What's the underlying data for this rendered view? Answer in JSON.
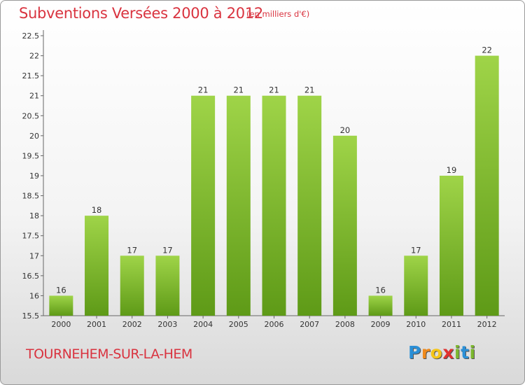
{
  "chart_data": {
    "type": "bar",
    "title": "Subventions Versées 2000 à 2012",
    "subtitle": "(en milliers d'€)",
    "categories": [
      "2000",
      "2001",
      "2002",
      "2003",
      "2004",
      "2005",
      "2006",
      "2007",
      "2008",
      "2009",
      "2010",
      "2011",
      "2012"
    ],
    "values": [
      16,
      18,
      17,
      17,
      21,
      21,
      21,
      21,
      20,
      16,
      17,
      19,
      22
    ],
    "ylim": [
      15.5,
      22.5
    ],
    "yticks": [
      "15.5",
      "16",
      "16.5",
      "17",
      "17.5",
      "18",
      "18.5",
      "19",
      "19.5",
      "20",
      "20.5",
      "21",
      "21.5",
      "22",
      "22.5"
    ],
    "xlabel": "",
    "ylabel": "",
    "grid": false,
    "bar_color": "#7cb82e",
    "bar_color_light": "#9fd448"
  },
  "commune": "TOURNEHEM-SUR-LA-HEM",
  "logo": {
    "letters": [
      "P",
      "r",
      "o",
      "x",
      "i",
      "t",
      "i"
    ],
    "colors": [
      "#2b8fd6",
      "#f08a1c",
      "#f5c518",
      "#e0312f",
      "#7cb82e",
      "#2b8fd6",
      "#7cb82e"
    ]
  },
  "colors": {
    "title": "#d9333f"
  }
}
